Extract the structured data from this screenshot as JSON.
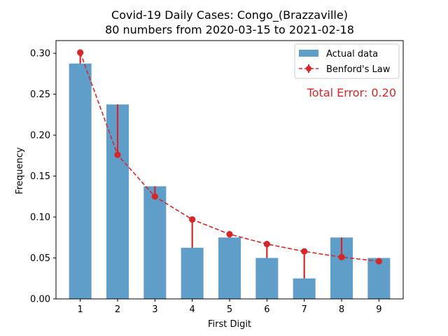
{
  "chart_data": {
    "type": "bar",
    "title": "Covid-19 Daily Cases: Congo_(Brazzaville)",
    "subtitle": "80 numbers from 2020-03-15 to 2021-02-18",
    "xlabel": "First Digit",
    "ylabel": "Frequency",
    "categories": [
      "1",
      "2",
      "3",
      "4",
      "5",
      "6",
      "7",
      "8",
      "9"
    ],
    "x": [
      1,
      2,
      3,
      4,
      5,
      6,
      7,
      8,
      9
    ],
    "xlim": [
      0.35,
      9.65
    ],
    "ylim": [
      0,
      0.3155
    ],
    "yticks": [
      0.0,
      0.05,
      0.1,
      0.15,
      0.2,
      0.25,
      0.3
    ],
    "ytick_labels": [
      "0.00",
      "0.05",
      "0.10",
      "0.15",
      "0.20",
      "0.25",
      "0.30"
    ],
    "grid": false,
    "legend_position": "top-right",
    "series": [
      {
        "name": "Actual data",
        "type": "bar",
        "color": "#5f9ec9",
        "values": [
          0.2875,
          0.2375,
          0.1375,
          0.0625,
          0.075,
          0.05,
          0.025,
          0.075,
          0.05
        ]
      },
      {
        "name": "Benford's Law",
        "type": "line",
        "color": "#d62728",
        "linestyle": "dashed",
        "marker": "circle",
        "values": [
          0.301,
          0.176,
          0.125,
          0.097,
          0.079,
          0.067,
          0.058,
          0.051,
          0.046
        ]
      }
    ],
    "annotations": [
      {
        "text": "Total Error: 0.20",
        "color": "#d62728",
        "position": "top-right"
      }
    ]
  }
}
